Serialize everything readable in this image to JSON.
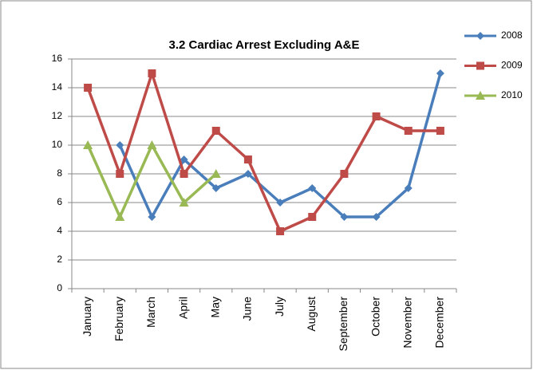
{
  "chart_data": {
    "type": "line",
    "title": "3.2 Cardiac Arrest Excluding A&E",
    "categories": [
      "January",
      "February",
      "March",
      "April",
      "May",
      "June",
      "July",
      "August",
      "September",
      "October",
      "November",
      "December"
    ],
    "series": [
      {
        "name": "2008",
        "color": "#4a7ebb",
        "marker": "diamond",
        "values": [
          null,
          10,
          5,
          9,
          7,
          8,
          6,
          7,
          5,
          5,
          7,
          15
        ]
      },
      {
        "name": "2009",
        "color": "#be4b48",
        "marker": "square",
        "values": [
          14,
          8,
          15,
          8,
          11,
          9,
          4,
          5,
          8,
          12,
          11,
          11
        ]
      },
      {
        "name": "2010",
        "color": "#98b954",
        "marker": "triangle",
        "values": [
          10,
          5,
          10,
          6,
          8,
          null,
          null,
          null,
          null,
          null,
          null,
          null
        ]
      }
    ],
    "ylim": [
      0,
      16
    ],
    "yticks": [
      0,
      2,
      4,
      6,
      8,
      10,
      12,
      14,
      16
    ],
    "grid": true,
    "legend": "right"
  }
}
